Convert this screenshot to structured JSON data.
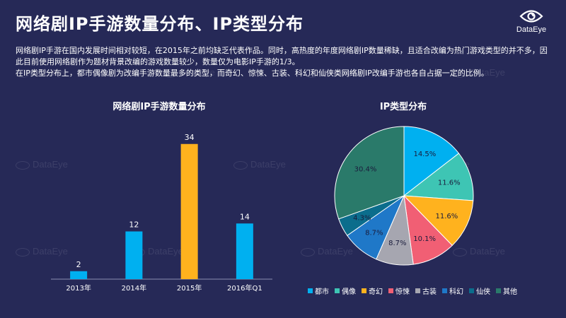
{
  "header": {
    "title": "网络剧IP手游数量分布、IP类型分布",
    "logo_text": "DataEye"
  },
  "description": {
    "line1": "网络剧IP手游在国内发展时间相对较短，在2015年之前均缺乏代表作品。同时，高热度的年度网络剧IP数量稀缺，且适合改编为热门游戏类型的并不多，因此目前使用网络剧作为题材背景改编的游戏数量较少，数量仅为电影IP手游的1/3。",
    "line2": "在IP类型分布上，都市偶像剧为改编手游数量最多的类型，而奇幻、惊悚、古装、科幻和仙侠类网络剧IP改编手游也各自占据一定的比例。"
  },
  "watermark_text": "DataEye",
  "chart_data": [
    {
      "type": "bar",
      "title": "网络剧IP手游数量分布",
      "categories": [
        "2013年",
        "2014年",
        "2015年",
        "2016年Q1"
      ],
      "values": [
        2,
        12,
        34,
        14
      ],
      "data_labels": [
        "2",
        "12",
        "34",
        "14"
      ],
      "colors": [
        "#00b0f0",
        "#00b0f0",
        "#ffb21e",
        "#00b0f0"
      ],
      "ylim": [
        0,
        40
      ],
      "grid": false
    },
    {
      "type": "pie",
      "title": "IP类型分布",
      "labels": [
        "都市",
        "偶像",
        "奇幻",
        "惊悚",
        "古装",
        "科幻",
        "仙侠",
        "其他"
      ],
      "values": [
        14.5,
        11.6,
        11.6,
        10.1,
        8.7,
        8.7,
        4.3,
        30.4
      ],
      "value_labels": [
        "14.5%",
        "11.6%",
        "11.6%",
        "10.1%",
        "8.7%",
        "8.7%",
        "4.3%",
        "30.4%"
      ],
      "colors": [
        "#00b0f0",
        "#3ec5b4",
        "#ffb21e",
        "#f15f74",
        "#a6a6b0",
        "#1f78c8",
        "#0b6d8c",
        "#2a7a6a"
      ],
      "legend_position": "bottom"
    }
  ]
}
